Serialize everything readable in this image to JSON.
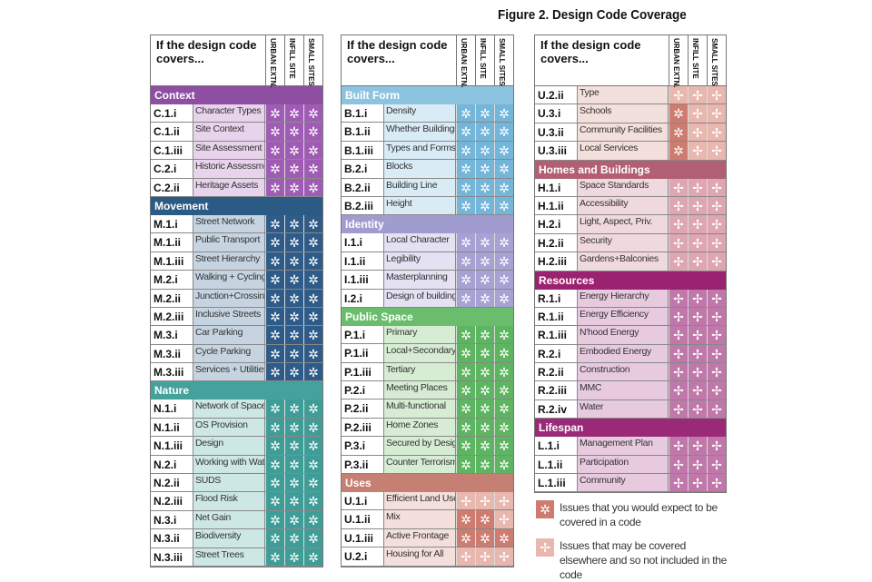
{
  "figure_title": "Figure 2.    Design Code Coverage",
  "header": {
    "question": "If the design code covers...",
    "columns": [
      "URBAN EXTN.",
      "INFILL SITE",
      "SMALL SITES"
    ]
  },
  "symbols": {
    "e": "✲",
    "o": "✢"
  },
  "columns": [
    [
      {
        "title": "Context",
        "colors": {
          "header": "#8e4fa2",
          "cell": "#a05cb5",
          "label": "#e7d3eb"
        },
        "rows": [
          {
            "code": "C.1.i",
            "label": "Character Types",
            "cells": [
              "e",
              "e",
              "e"
            ]
          },
          {
            "code": "C.1.ii",
            "label": "Site Context",
            "cells": [
              "e",
              "e",
              "e"
            ]
          },
          {
            "code": "C.1.iii",
            "label": "Site Assessment",
            "cells": [
              "e",
              "e",
              "e"
            ]
          },
          {
            "code": "C.2.i",
            "label": "Historic Assessment",
            "cells": [
              "e",
              "e",
              "e"
            ]
          },
          {
            "code": "C.2.ii",
            "label": "Heritage Assets",
            "cells": [
              "e",
              "e",
              "e"
            ]
          }
        ]
      },
      {
        "title": "Movement",
        "colors": {
          "header": "#2b5a85",
          "cell": "#2e5b88",
          "label": "#c6d4e1"
        },
        "rows": [
          {
            "code": "M.1.i",
            "label": "Street Network",
            "cells": [
              "e",
              "e",
              "e"
            ]
          },
          {
            "code": "M.1.ii",
            "label": "Public Transport",
            "cells": [
              "e",
              "e",
              "e"
            ]
          },
          {
            "code": "M.1.iii",
            "label": "Street Hierarchy",
            "cells": [
              "e",
              "e",
              "e"
            ]
          },
          {
            "code": "M.2.i",
            "label": "Walking + Cycling",
            "cells": [
              "e",
              "e",
              "e"
            ]
          },
          {
            "code": "M.2.ii",
            "label": "Junction+Crossings",
            "cells": [
              "e",
              "e",
              "e"
            ]
          },
          {
            "code": "M.2.iii",
            "label": "Inclusive Streets",
            "cells": [
              "e",
              "e",
              "e"
            ]
          },
          {
            "code": "M.3.i",
            "label": "Car Parking",
            "cells": [
              "e",
              "e",
              "e"
            ]
          },
          {
            "code": "M.3.ii",
            "label": "Cycle Parking",
            "cells": [
              "e",
              "e",
              "e"
            ]
          },
          {
            "code": "M.3.iii",
            "label": "Services + Utilities",
            "cells": [
              "e",
              "e",
              "e"
            ]
          }
        ]
      },
      {
        "title": "Nature",
        "colors": {
          "header": "#45a19c",
          "cell": "#3f9d98",
          "label": "#cde7e4"
        },
        "rows": [
          {
            "code": "N.1.i",
            "label": "Network of Spaces",
            "cells": [
              "e",
              "e",
              "e"
            ]
          },
          {
            "code": "N.1.ii",
            "label": "OS Provision",
            "cells": [
              "e",
              "e",
              "e"
            ]
          },
          {
            "code": "N.1.iii",
            "label": "Design",
            "cells": [
              "e",
              "e",
              "e"
            ]
          },
          {
            "code": "N.2.i",
            "label": "Working with Water",
            "cells": [
              "e",
              "e",
              "e"
            ]
          },
          {
            "code": "N.2.ii",
            "label": "SUDS",
            "cells": [
              "e",
              "e",
              "e"
            ]
          },
          {
            "code": "N.2.iii",
            "label": "Flood Risk",
            "cells": [
              "e",
              "e",
              "e"
            ]
          },
          {
            "code": "N.3.i",
            "label": "Net Gain",
            "cells": [
              "e",
              "e",
              "e"
            ]
          },
          {
            "code": "N.3.ii",
            "label": "Biodiversity",
            "cells": [
              "e",
              "e",
              "e"
            ]
          },
          {
            "code": "N.3.iii",
            "label": "Street Trees",
            "cells": [
              "e",
              "e",
              "e"
            ]
          }
        ]
      }
    ],
    [
      {
        "title": "Built Form",
        "colors": {
          "header": "#8cc4e0",
          "cell": "#74b6da",
          "label": "#d9ecf6"
        },
        "rows": [
          {
            "code": "B.1.i",
            "label": "Density",
            "cells": [
              "e",
              "e",
              "e"
            ]
          },
          {
            "code": "B.1.ii",
            "label": "Whether Buildings Join",
            "cells": [
              "e",
              "e",
              "e"
            ]
          },
          {
            "code": "B.1.iii",
            "label": "Types and Forms",
            "cells": [
              "e",
              "e",
              "e"
            ]
          },
          {
            "code": "B.2.i",
            "label": "Blocks",
            "cells": [
              "e",
              "e",
              "e"
            ]
          },
          {
            "code": "B.2.ii",
            "label": "Building Line",
            "cells": [
              "e",
              "e",
              "e"
            ]
          },
          {
            "code": "B.2.iii",
            "label": "Height",
            "cells": [
              "e",
              "e",
              "e"
            ]
          }
        ]
      },
      {
        "title": "Identity",
        "colors": {
          "header": "#a19cd0",
          "cell": "#a6a2d4",
          "label": "#e3e1f2"
        },
        "rows": [
          {
            "code": "I.1.i",
            "label": "Local Character",
            "cells": [
              "e",
              "e",
              "e"
            ]
          },
          {
            "code": "I.1.ii",
            "label": "Legibility",
            "cells": [
              "e",
              "e",
              "e"
            ]
          },
          {
            "code": "I.1.iii",
            "label": "Masterplanning",
            "cells": [
              "e",
              "e",
              "e"
            ]
          },
          {
            "code": "I.2.i",
            "label": "Design of buildings",
            "cells": [
              "e",
              "e",
              "e"
            ]
          }
        ]
      },
      {
        "title": "Public Space",
        "colors": {
          "header": "#6abd6c",
          "cell": "#5eb561",
          "label": "#d6edd4"
        },
        "rows": [
          {
            "code": "P.1.i",
            "label": "Primary",
            "cells": [
              "e",
              "e",
              "e"
            ]
          },
          {
            "code": "P.1.ii",
            "label": "Local+Secondary",
            "cells": [
              "e",
              "e",
              "e"
            ]
          },
          {
            "code": "P.1.iii",
            "label": "Tertiary",
            "cells": [
              "e",
              "e",
              "e"
            ]
          },
          {
            "code": "P.2.i",
            "label": "Meeting Places",
            "cells": [
              "e",
              "e",
              "e"
            ]
          },
          {
            "code": "P.2.ii",
            "label": "Multi-functional",
            "cells": [
              "e",
              "e",
              "e"
            ]
          },
          {
            "code": "P.2.iii",
            "label": "Home Zones",
            "cells": [
              "e",
              "e",
              "e"
            ]
          },
          {
            "code": "P.3.i",
            "label": "Secured by Design",
            "cells": [
              "e",
              "e",
              "e"
            ]
          },
          {
            "code": "P.3.ii",
            "label": "Counter Terrorism",
            "cells": [
              "e",
              "e",
              "e"
            ]
          }
        ]
      },
      {
        "title": "Uses",
        "colors": {
          "header": "#c67f73",
          "cell": "#cd7c6f",
          "cell_other": "#e8b7ae",
          "label": "#f3dfdb"
        },
        "rows": [
          {
            "code": "U.1.i",
            "label": "Efficient Land Use",
            "cells": [
              "o",
              "o",
              "o"
            ]
          },
          {
            "code": "U.1.ii",
            "label": "Mix",
            "cells": [
              "e",
              "e",
              "o"
            ]
          },
          {
            "code": "U.1.iii",
            "label": "Active Frontage",
            "cells": [
              "e",
              "e",
              "e"
            ]
          },
          {
            "code": "U.2.i",
            "label": "Housing for All",
            "cells": [
              "o",
              "o",
              "o"
            ]
          }
        ]
      }
    ],
    [
      {
        "title": "",
        "colors": {
          "header": "#c67f73",
          "cell": "#cd7c6f",
          "cell_other": "#e8b7ae",
          "label": "#f3dfdb"
        },
        "rows": [
          {
            "code": "U.2.ii",
            "label": "Type",
            "cells": [
              "o",
              "o",
              "o"
            ]
          },
          {
            "code": "U.3.i",
            "label": "Schools",
            "cells": [
              "e",
              "o",
              "o"
            ]
          },
          {
            "code": "U.3.ii",
            "label": "Community Facilities",
            "cells": [
              "e",
              "o",
              "o"
            ]
          },
          {
            "code": "U.3.iii",
            "label": "Local Services",
            "cells": [
              "e",
              "o",
              "o"
            ]
          }
        ]
      },
      {
        "title": "Homes and Buildings",
        "colors": {
          "header": "#b35f73",
          "cell": "#b35f73",
          "cell_other": "#dea5b2",
          "label": "#f0d9de"
        },
        "rows": [
          {
            "code": "H.1.i",
            "label": "Space Standards",
            "cells": [
              "o",
              "o",
              "o"
            ]
          },
          {
            "code": "H.1.ii",
            "label": "Accessibility",
            "cells": [
              "o",
              "o",
              "o"
            ]
          },
          {
            "code": "H.2.i",
            "label": "Light, Aspect, Priv.",
            "cells": [
              "o",
              "o",
              "o"
            ]
          },
          {
            "code": "H.2.ii",
            "label": "Security",
            "cells": [
              "o",
              "o",
              "o"
            ]
          },
          {
            "code": "H.2.iii",
            "label": "Gardens+Balconies",
            "cells": [
              "o",
              "o",
              "o"
            ]
          }
        ]
      },
      {
        "title": "Resources",
        "colors": {
          "header": "#9b2270",
          "cell": "#9b2270",
          "cell_other": "#c077a9",
          "label": "#e8cadf"
        },
        "rows": [
          {
            "code": "R.1.i",
            "label": "Energy Hierarchy",
            "cells": [
              "o",
              "o",
              "o"
            ]
          },
          {
            "code": "R.1.ii",
            "label": "Energy Efficiency",
            "cells": [
              "o",
              "o",
              "o"
            ]
          },
          {
            "code": "R.1.iii",
            "label": "N'hood Energy",
            "cells": [
              "o",
              "o",
              "o"
            ]
          },
          {
            "code": "R.2.i",
            "label": "Embodied Energy",
            "cells": [
              "o",
              "o",
              "o"
            ]
          },
          {
            "code": "R.2.ii",
            "label": "Construction",
            "cells": [
              "o",
              "o",
              "o"
            ]
          },
          {
            "code": "R.2.iii",
            "label": "MMC",
            "cells": [
              "o",
              "o",
              "o"
            ]
          },
          {
            "code": "R.2.iv",
            "label": "Water",
            "cells": [
              "o",
              "o",
              "o"
            ]
          }
        ]
      },
      {
        "title": "Lifespan",
        "colors": {
          "header": "#9a2a78",
          "cell": "#9a2a78",
          "cell_other": "#c077a9",
          "label": "#e8cadf"
        },
        "rows": [
          {
            "code": "L.1.i",
            "label": "Management Plan",
            "cells": [
              "o",
              "o",
              "o"
            ]
          },
          {
            "code": "L.1.ii",
            "label": "Participation",
            "cells": [
              "o",
              "o",
              "o"
            ]
          },
          {
            "code": "L.1.iii",
            "label": "Community",
            "cells": [
              "o",
              "o",
              "o"
            ]
          }
        ]
      }
    ]
  ],
  "legend": [
    {
      "symbol": "e",
      "color": "#cd7c6f",
      "text": "Issues that you would expect to be covered in a code"
    },
    {
      "symbol": "o",
      "color": "#e8b7ae",
      "text": "Issues that may be covered elsewhere and so not included in the code"
    }
  ]
}
